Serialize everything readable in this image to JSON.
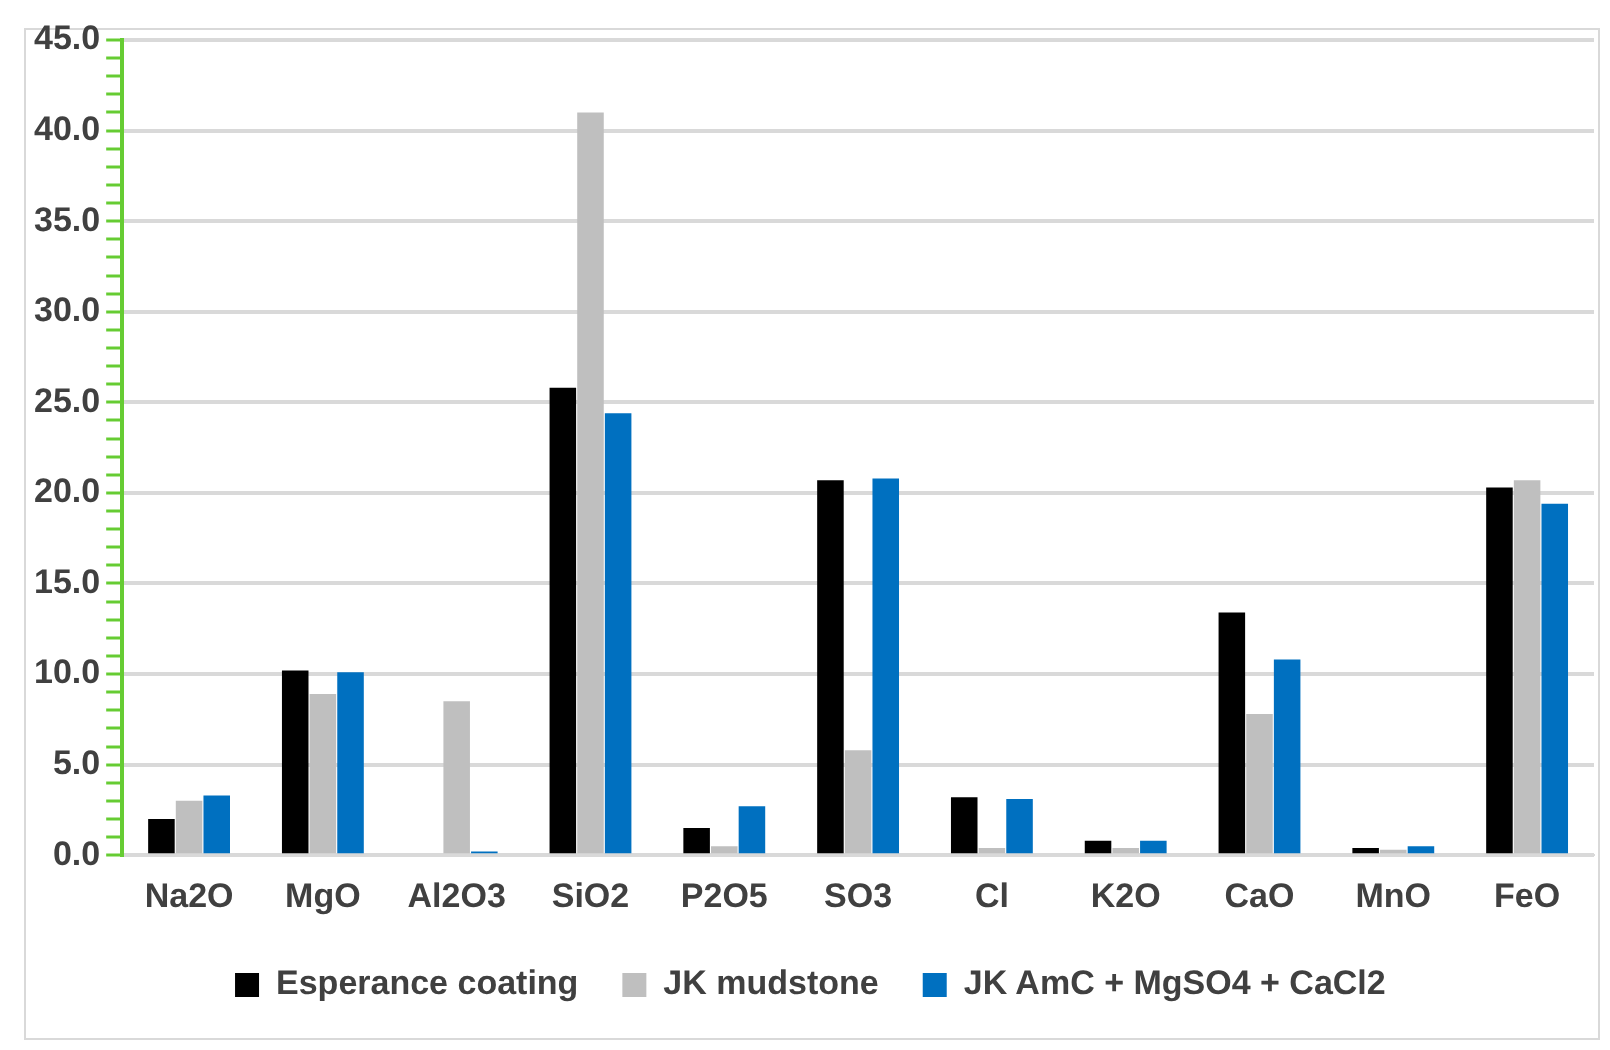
{
  "chart_data": {
    "type": "bar",
    "categories": [
      "Na2O",
      "MgO",
      "Al2O3",
      "SiO2",
      "P2O5",
      "SO3",
      "Cl",
      "K2O",
      "CaO",
      "MnO",
      "FeO"
    ],
    "series": [
      {
        "name": "Esperance coating",
        "color": "#000000",
        "values": [
          2.0,
          10.2,
          0,
          25.8,
          1.5,
          20.7,
          3.2,
          0.8,
          13.4,
          0.4,
          20.3
        ]
      },
      {
        "name": "JK mudstone",
        "color": "#bfbfbf",
        "values": [
          3.0,
          8.9,
          8.5,
          41.0,
          0.5,
          5.8,
          0.4,
          0.4,
          7.8,
          0.3,
          20.7
        ]
      },
      {
        "name": "JK AmC + MgSO4 + CaCl2",
        "color": "#0070c0",
        "values": [
          3.3,
          10.1,
          0.2,
          24.4,
          2.7,
          20.8,
          3.1,
          0.8,
          10.8,
          0.5,
          19.4
        ]
      }
    ],
    "ylim": [
      0,
      45
    ],
    "yticks": [
      {
        "value": 0,
        "label": "0.0"
      },
      {
        "value": 1,
        "label": null
      },
      {
        "value": 2,
        "label": null
      },
      {
        "value": 3,
        "label": null
      },
      {
        "value": 4,
        "label": null
      },
      {
        "value": 5,
        "label": "5.0"
      },
      {
        "value": 6,
        "label": null
      },
      {
        "value": 7,
        "label": null
      },
      {
        "value": 8,
        "label": null
      },
      {
        "value": 9,
        "label": null
      },
      {
        "value": 10,
        "label": "10.0"
      },
      {
        "value": 11,
        "label": null
      },
      {
        "value": 12,
        "label": null
      },
      {
        "value": 13,
        "label": null
      },
      {
        "value": 14,
        "label": null
      },
      {
        "value": 15,
        "label": "15.0"
      },
      {
        "value": 16,
        "label": null
      },
      {
        "value": 17,
        "label": null
      },
      {
        "value": 18,
        "label": null
      },
      {
        "value": 19,
        "label": null
      },
      {
        "value": 20,
        "label": "20.0"
      },
      {
        "value": 21,
        "label": null
      },
      {
        "value": 22,
        "label": null
      },
      {
        "value": 23,
        "label": null
      },
      {
        "value": 24,
        "label": null
      },
      {
        "value": 25,
        "label": "25.0"
      },
      {
        "value": 26,
        "label": null
      },
      {
        "value": 27,
        "label": null
      },
      {
        "value": 28,
        "label": null
      },
      {
        "value": 29,
        "label": null
      },
      {
        "value": 30,
        "label": "30.0"
      },
      {
        "value": 31,
        "label": null
      },
      {
        "value": 32,
        "label": null
      },
      {
        "value": 33,
        "label": null
      },
      {
        "value": 34,
        "label": null
      },
      {
        "value": 35,
        "label": "35.0"
      },
      {
        "value": 36,
        "label": null
      },
      {
        "value": 37,
        "label": null
      },
      {
        "value": 38,
        "label": null
      },
      {
        "value": 39,
        "label": null
      },
      {
        "value": 40,
        "label": "40.0"
      },
      {
        "value": 41,
        "label": null
      },
      {
        "value": 42,
        "label": null
      },
      {
        "value": 43,
        "label": null
      },
      {
        "value": 44,
        "label": null
      },
      {
        "value": 45,
        "label": "45.0"
      }
    ],
    "grid": "y",
    "legend": "bottom"
  }
}
